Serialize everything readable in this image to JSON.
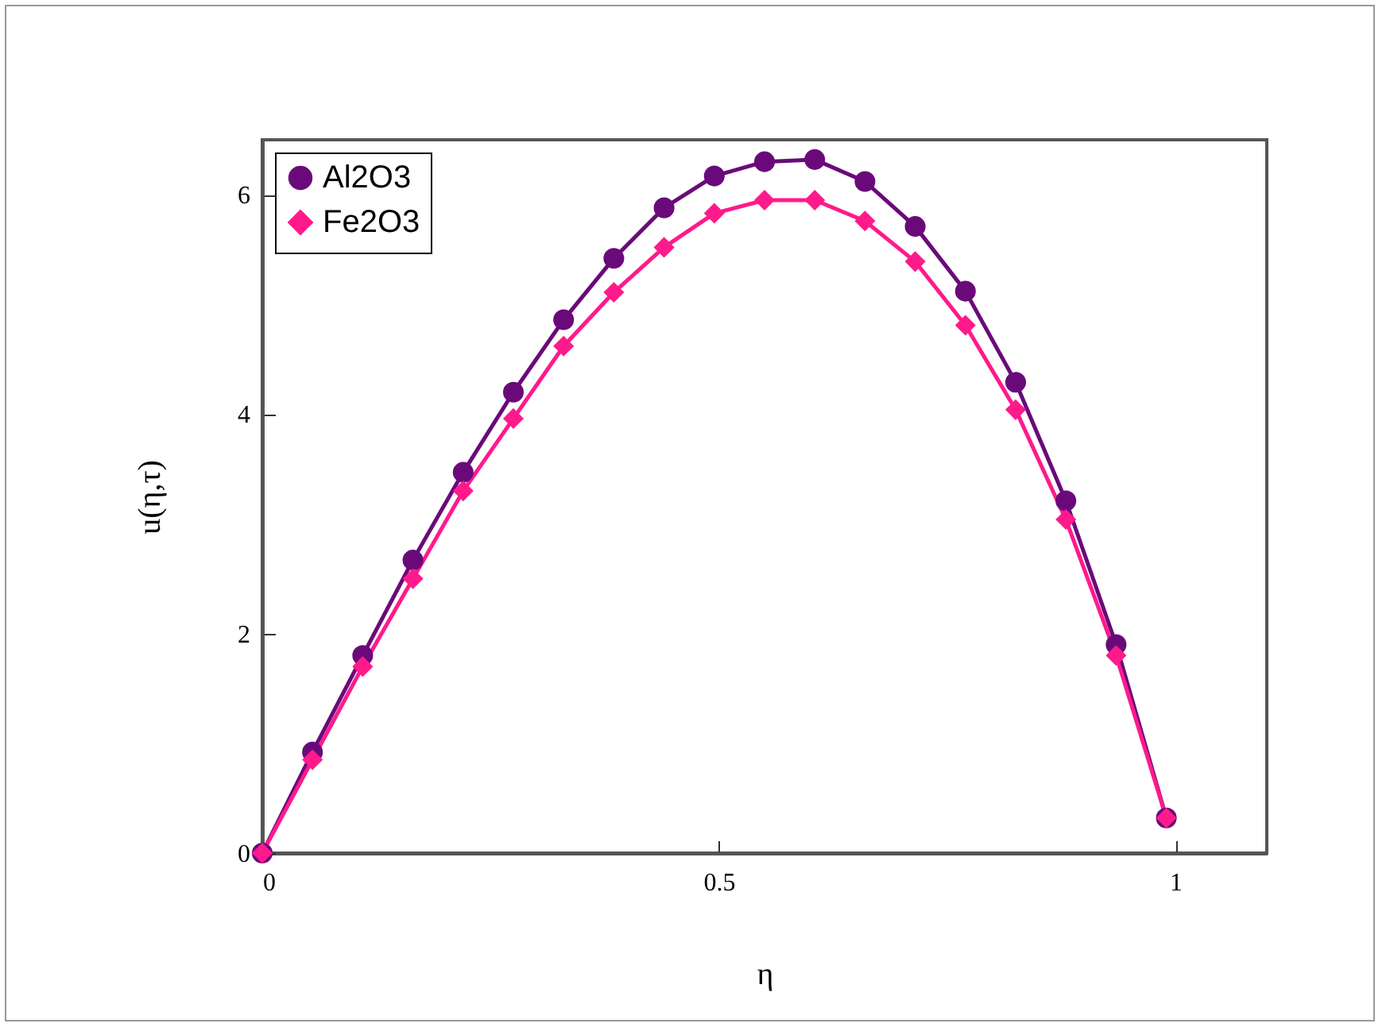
{
  "chart_data": {
    "type": "line",
    "xlabel": "η",
    "ylabel": "u(η,τ)",
    "x": [
      0,
      0.055,
      0.11,
      0.165,
      0.22,
      0.275,
      0.33,
      0.385,
      0.44,
      0.495,
      0.55,
      0.605,
      0.66,
      0.715,
      0.77,
      0.825,
      0.88,
      0.935,
      0.99
    ],
    "series": [
      {
        "name": "Al2O3",
        "color": "#6a0a7a",
        "marker": "circle",
        "values": [
          0,
          0.92,
          1.8,
          2.67,
          3.47,
          4.2,
          4.86,
          5.42,
          5.88,
          6.17,
          6.3,
          6.32,
          6.12,
          5.71,
          5.12,
          4.29,
          3.21,
          1.9,
          0.32
        ]
      },
      {
        "name": "Fe2O3",
        "color": "#ff1a8c",
        "marker": "diamond",
        "values": [
          0,
          0.85,
          1.7,
          2.5,
          3.3,
          3.96,
          4.62,
          5.11,
          5.52,
          5.83,
          5.95,
          5.95,
          5.76,
          5.39,
          4.81,
          4.04,
          3.04,
          1.8,
          0.32
        ]
      }
    ],
    "xlim": [
      0,
      1.1
    ],
    "xticks": [
      0,
      0.5,
      1
    ],
    "ylim": [
      0,
      6.5
    ],
    "yticks": [
      0,
      2,
      4,
      6
    ],
    "grid": false,
    "legend": "top left",
    "line_style": "solid"
  }
}
